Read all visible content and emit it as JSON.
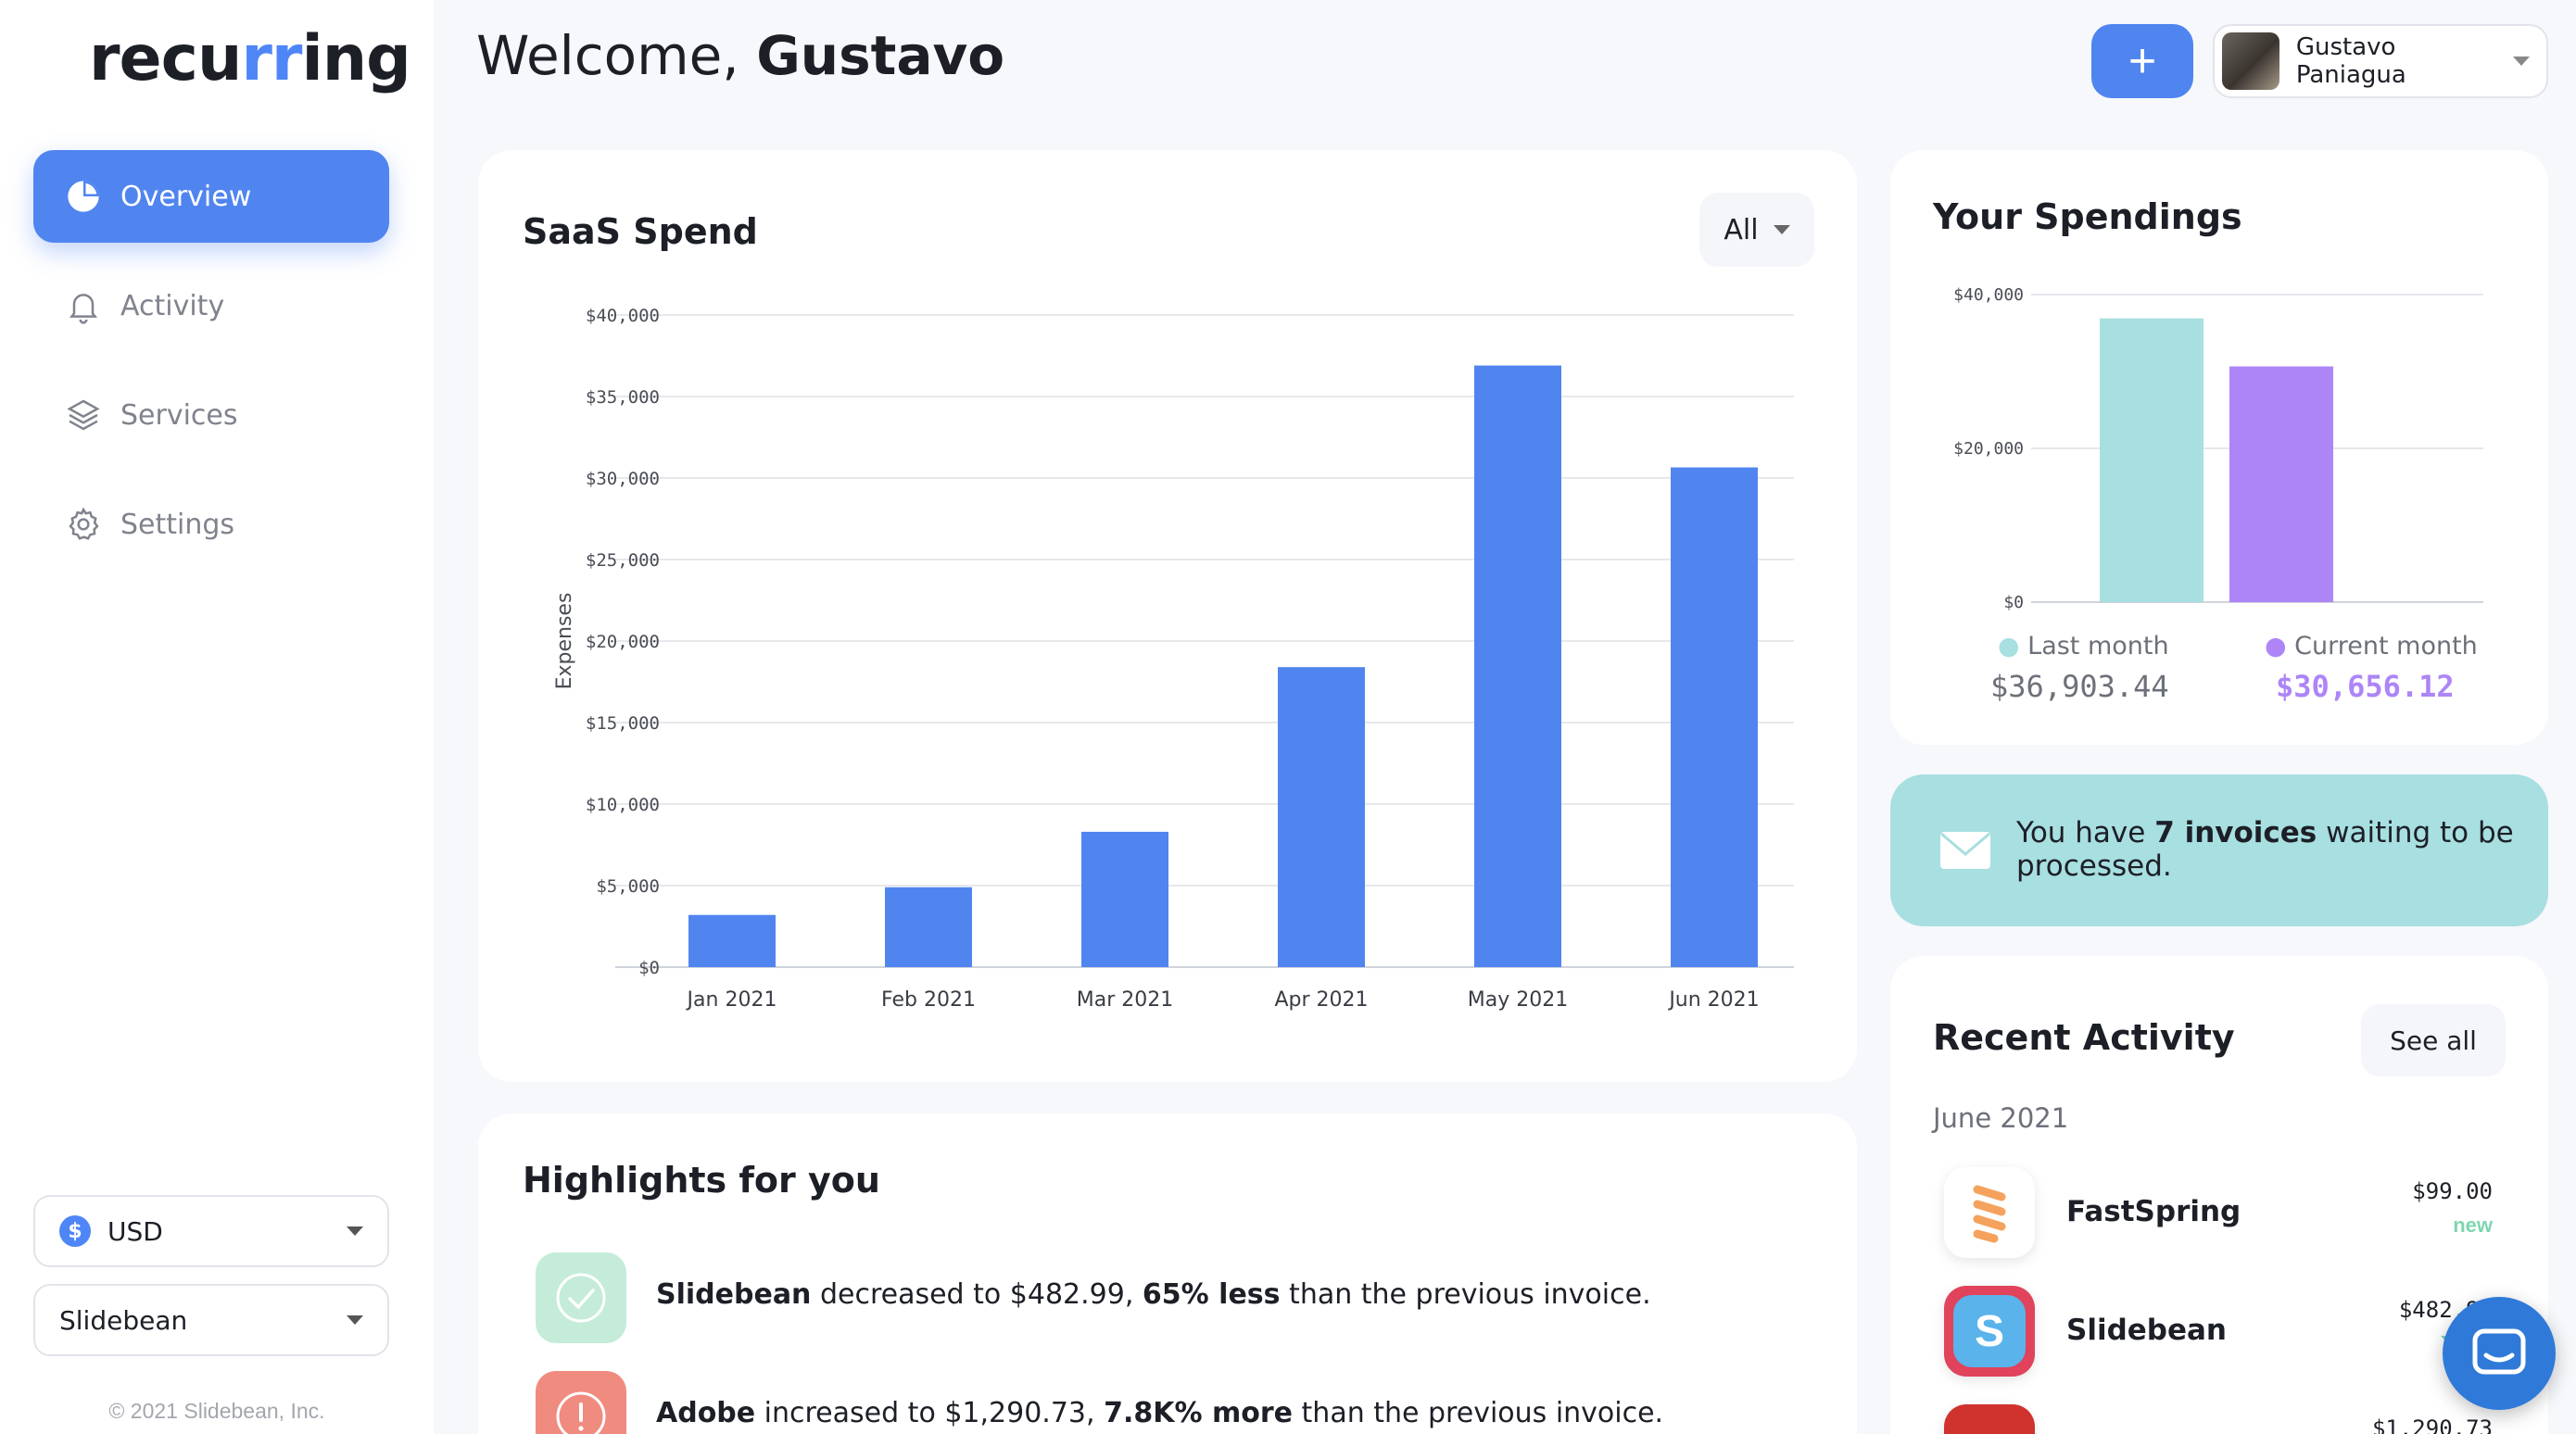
{
  "sidebar": {
    "logo": {
      "pre": "recu",
      "accent": "rr",
      "post": "ing"
    },
    "nav": [
      {
        "label": "Overview",
        "icon": "pie-chart-icon",
        "active": true
      },
      {
        "label": "Activity",
        "icon": "bell-icon",
        "active": false
      },
      {
        "label": "Services",
        "icon": "layers-icon",
        "active": false
      },
      {
        "label": "Settings",
        "icon": "gear-icon",
        "active": false
      }
    ],
    "currency": {
      "value": "USD",
      "symbol": "$"
    },
    "company": {
      "value": "Slidebean"
    },
    "footer": "© 2021 Slidebean, Inc."
  },
  "header": {
    "welcome_prefix": "Welcome,",
    "welcome_name": "Gustavo",
    "add_label": "+",
    "user_name": "Gustavo Paniagua"
  },
  "saas_spend": {
    "title": "SaaS Spend",
    "filter": "All"
  },
  "your_spendings": {
    "title": "Your Spendings",
    "last_label": "Last month",
    "last_value": "$36,903.44",
    "current_label": "Current month",
    "current_value": "$30,656.12"
  },
  "invoice_banner": {
    "pre": "You have ",
    "bold": "7 invoices",
    "post": " waiting to be processed."
  },
  "recent_activity": {
    "title": "Recent Activity",
    "see_all": "See all",
    "month": "June 2021",
    "items": [
      {
        "name": "FastSpring",
        "amount": "$99.00",
        "badge": "new"
      },
      {
        "name": "Slidebean",
        "amount": "$482.99"
      },
      {
        "name": "",
        "amount": "$1,290.73"
      }
    ]
  },
  "highlights": {
    "title": "Highlights for you",
    "items": [
      {
        "bold1": "Slidebean",
        "mid": " decreased to $482.99, ",
        "bold2": "65% less",
        "end": " than the previous invoice."
      },
      {
        "bold1": "Adobe",
        "mid": " increased to $1,290.73, ",
        "bold2": "7.8K% more",
        "end": " than the previous invoice."
      }
    ]
  },
  "colors": {
    "accent": "#5085f0",
    "teal": "#a8dfe1",
    "purple": "#ad85f7",
    "cyan_bar": "#a8dfe1",
    "green_new": "#7ed6b0"
  },
  "chart_data": [
    {
      "type": "bar",
      "title": "SaaS Spend",
      "categories": [
        "Jan 2021",
        "Feb 2021",
        "Mar 2021",
        "Apr 2021",
        "May 2021",
        "Jun 2021"
      ],
      "values": [
        3200,
        4900,
        8300,
        18400,
        36900,
        30650
      ],
      "ylabel": "Expenses",
      "ylim": [
        0,
        40000
      ],
      "yticks": [
        "$0",
        "$5,000",
        "$10,000",
        "$15,000",
        "$20,000",
        "$25,000",
        "$30,000",
        "$35,000",
        "$40,000"
      ],
      "grid": true
    },
    {
      "type": "bar",
      "title": "Your Spendings",
      "categories": [
        "Last month",
        "Current month"
      ],
      "values": [
        36903.44,
        30656.12
      ],
      "ylim": [
        0,
        40000
      ],
      "yticks": [
        "$0",
        "$20,000",
        "$40,000"
      ],
      "grid": true
    }
  ]
}
